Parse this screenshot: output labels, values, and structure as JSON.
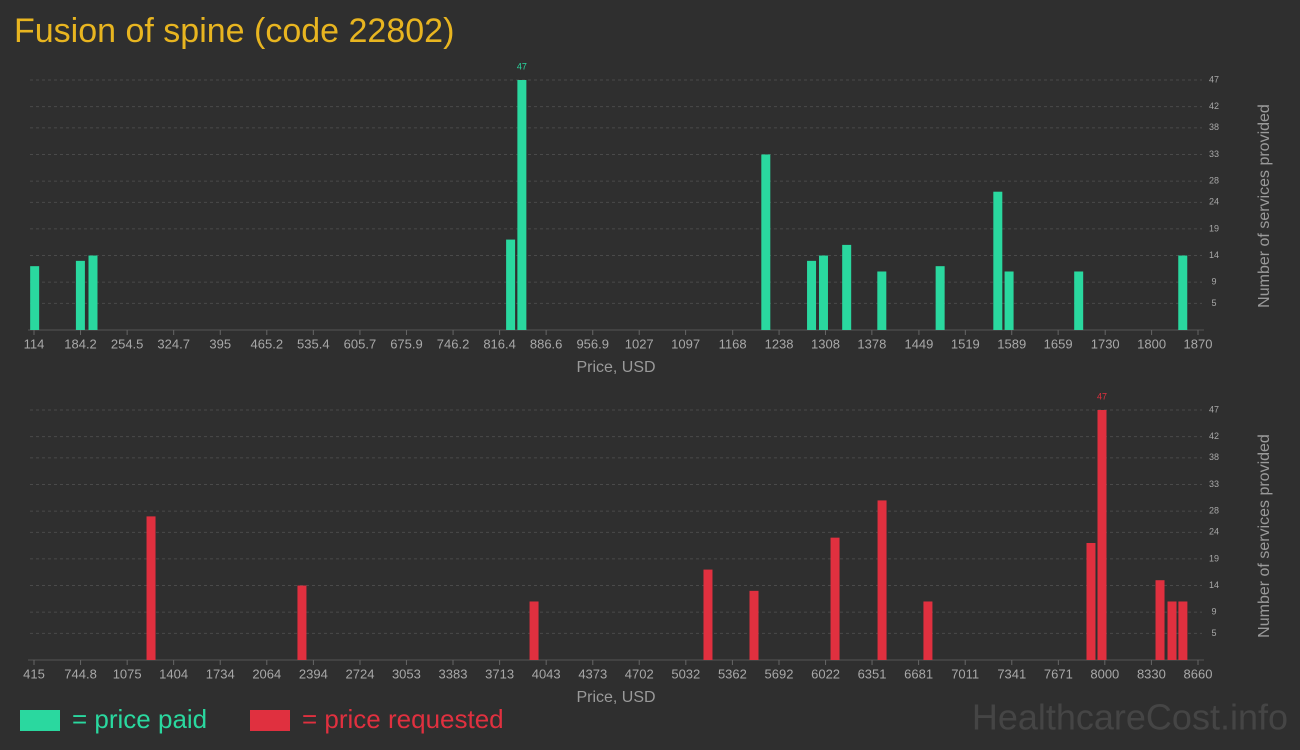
{
  "title": "Fusion of spine (code 22802)",
  "watermark": "HealthcareCost.info",
  "chart_data": [
    {
      "type": "bar",
      "series_name": "= price paid",
      "color": "#2ad89f",
      "xlabel": "Price, USD",
      "ylabel": "Number of services provided",
      "x": [
        115,
        184,
        203,
        833,
        850,
        1218,
        1287,
        1305,
        1340,
        1393,
        1481,
        1568,
        1585,
        1690,
        1847
      ],
      "values": [
        12,
        13,
        14,
        17,
        47,
        33,
        13,
        14,
        16,
        11,
        12,
        26,
        11,
        11,
        14
      ],
      "xlim": [
        114,
        1870
      ],
      "xticks": [
        114,
        184.2,
        254.5,
        324.7,
        395,
        465.2,
        535.4,
        605.7,
        675.9,
        746.2,
        816.4,
        886.6,
        956.9,
        1027,
        1097,
        1168,
        1238,
        1308,
        1378,
        1449,
        1519,
        1589,
        1659,
        1730,
        1800,
        1870
      ],
      "ylim": [
        0,
        47
      ],
      "yticks": [
        5,
        9,
        14,
        19,
        24,
        28,
        33,
        38,
        42,
        47
      ],
      "grid": true
    },
    {
      "type": "bar",
      "series_name": "= price requested",
      "color": "#e0303f",
      "xlabel": "Price, USD",
      "ylabel": "Number of services provided",
      "x": [
        1244,
        2313,
        3957,
        5189,
        5515,
        6089,
        6422,
        6747,
        7902,
        7980,
        8391,
        8476,
        8553
      ],
      "values": [
        27,
        14,
        11,
        17,
        13,
        23,
        30,
        11,
        22,
        47,
        15,
        11,
        11
      ],
      "xlim": [
        415,
        8660
      ],
      "xticks": [
        415,
        744.8,
        1075,
        1404,
        1734,
        2064,
        2394,
        2724,
        3053,
        3383,
        3713,
        4043,
        4373,
        4702,
        5032,
        5362,
        5692,
        6022,
        6351,
        6681,
        7011,
        7341,
        7671,
        8000,
        8330,
        8660
      ],
      "ylim": [
        0,
        47
      ],
      "yticks": [
        5,
        9,
        14,
        19,
        24,
        28,
        33,
        38,
        42,
        47
      ],
      "grid": true
    }
  ]
}
